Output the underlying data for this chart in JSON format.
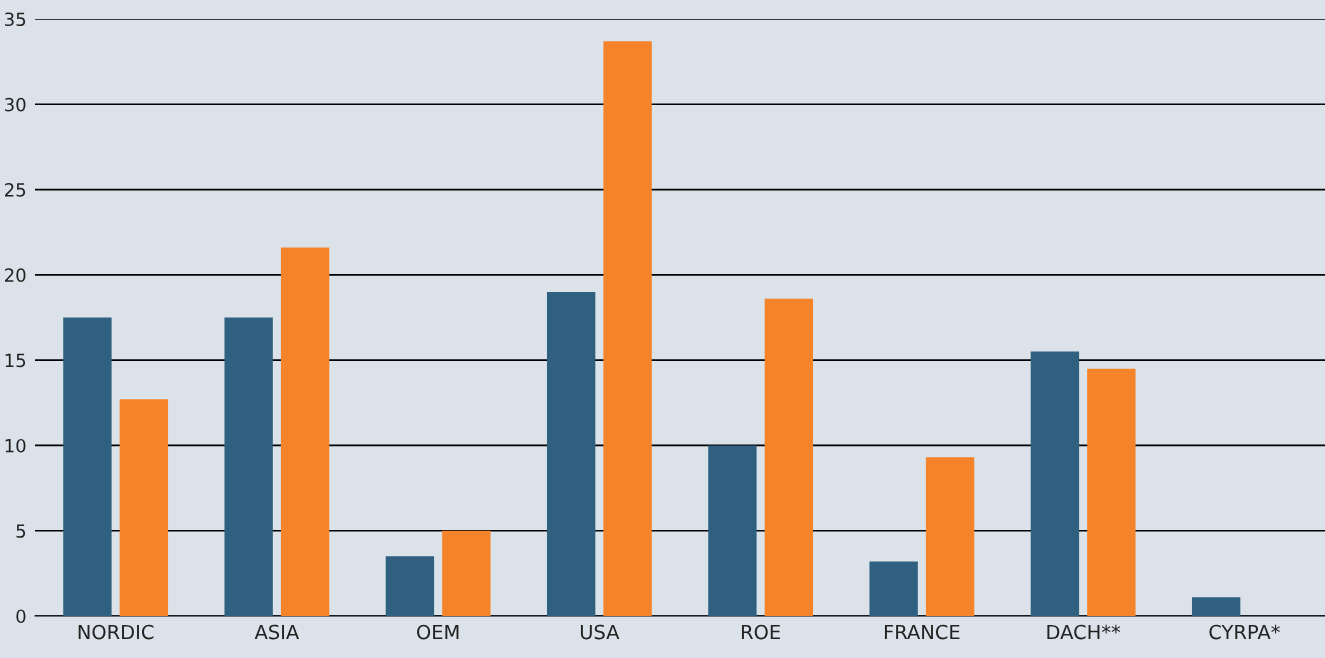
{
  "chart_data": {
    "type": "bar",
    "categories": [
      "NORDIC",
      "ASIA",
      "OEM",
      "USA",
      "ROE",
      "FRANCE",
      "DACH**",
      "CYRPA*"
    ],
    "series": [
      {
        "color": "#30607f",
        "values": [
          17.5,
          17.5,
          3.5,
          19.0,
          10.0,
          3.2,
          15.5,
          1.1
        ]
      },
      {
        "color": "#f5832a",
        "values": [
          12.7,
          21.6,
          5.0,
          33.7,
          18.6,
          9.3,
          14.5,
          null
        ]
      }
    ],
    "ylim": [
      0,
      35
    ],
    "yticks": [
      0,
      5,
      10,
      15,
      20,
      25,
      30,
      35
    ],
    "grid": "y"
  }
}
